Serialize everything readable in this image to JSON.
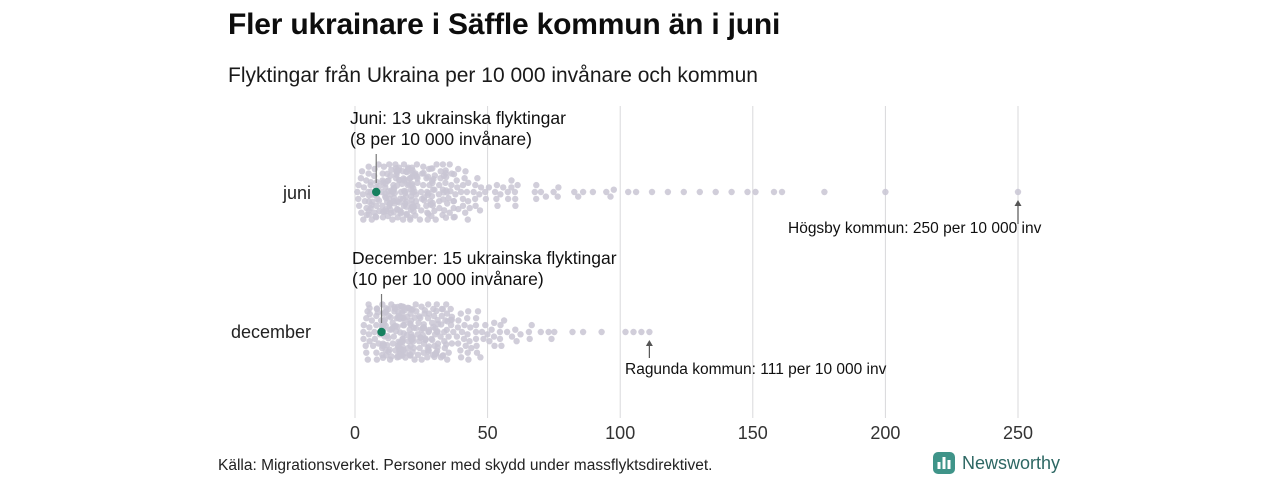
{
  "colors": {
    "dot": "#c9c5d3",
    "highlight": "#15805e",
    "grid": "#d9d9db",
    "axis_text": "#333333",
    "leader": "#777777",
    "arrow": "#555555",
    "brand_icon": "#3f9489",
    "brand_text": "#2d6763"
  },
  "footer": {
    "source": "Källa: Migrationsverket. Personer med skydd under massflyktsdirektivet.",
    "brand": "Newsworthy"
  },
  "chart_data": {
    "type": "scatter",
    "variant": "beeswarm",
    "title": "Fler ukrainare i Säffle kommun än i juni",
    "subtitle": "Flyktingar från Ukraina per 10 000 invånare och kommun",
    "unit": "flyktingar från Ukraina per 10 000 invånare och kommun",
    "x_ticks": [
      0,
      50,
      100,
      150,
      200,
      250
    ],
    "xlim": [
      0,
      260
    ],
    "grid": true,
    "rows": [
      {
        "label": "juni",
        "highlight": {
          "name": "Säffle",
          "value": 8,
          "refugees": 13
        },
        "annotation": {
          "line1": "Juni: 13 ukrainska flyktingar",
          "line2": "(8 per 10 000 invånare)"
        },
        "max_annotation": "Högsby kommun: 250 per 10 000 inv",
        "max": {
          "name": "Högsby kommun",
          "value": 250
        },
        "bins": [
          [
            0,
            5,
            14
          ],
          [
            5,
            10,
            30
          ],
          [
            10,
            15,
            42
          ],
          [
            15,
            20,
            44
          ],
          [
            20,
            25,
            38
          ],
          [
            25,
            30,
            32
          ],
          [
            30,
            35,
            24
          ],
          [
            35,
            40,
            17
          ],
          [
            40,
            45,
            13
          ],
          [
            45,
            50,
            9
          ],
          [
            50,
            55,
            6
          ],
          [
            55,
            60,
            5
          ],
          [
            60,
            65,
            4
          ],
          [
            65,
            70,
            3
          ],
          [
            70,
            75,
            3
          ],
          [
            75,
            80,
            2
          ],
          [
            80,
            85,
            2
          ],
          [
            85,
            90,
            2
          ],
          [
            90,
            95,
            1
          ],
          [
            95,
            100,
            2
          ]
        ],
        "outliers": [
          103,
          106,
          112,
          118,
          124,
          130,
          136,
          142,
          148,
          151,
          158,
          161,
          177,
          200,
          250
        ]
      },
      {
        "label": "december",
        "highlight": {
          "name": "Säffle",
          "value": 10,
          "refugees": 15
        },
        "annotation": {
          "line1": "December: 15 ukrainska flyktingar",
          "line2": "(10 per 10 000 invånare)"
        },
        "max_annotation": "Ragunda kommun: 111 per 10 000 inv",
        "max": {
          "name": "Ragunda kommun",
          "value": 111
        },
        "bins": [
          [
            3,
            8,
            18
          ],
          [
            8,
            13,
            40
          ],
          [
            13,
            18,
            48
          ],
          [
            18,
            23,
            44
          ],
          [
            23,
            28,
            36
          ],
          [
            28,
            33,
            28
          ],
          [
            33,
            38,
            22
          ],
          [
            38,
            43,
            16
          ],
          [
            43,
            48,
            12
          ],
          [
            48,
            53,
            8
          ],
          [
            53,
            58,
            6
          ],
          [
            58,
            63,
            4
          ],
          [
            63,
            68,
            3
          ],
          [
            68,
            73,
            2
          ],
          [
            73,
            78,
            2
          ]
        ],
        "outliers": [
          82,
          86,
          93,
          102,
          105,
          108,
          111
        ]
      }
    ]
  }
}
